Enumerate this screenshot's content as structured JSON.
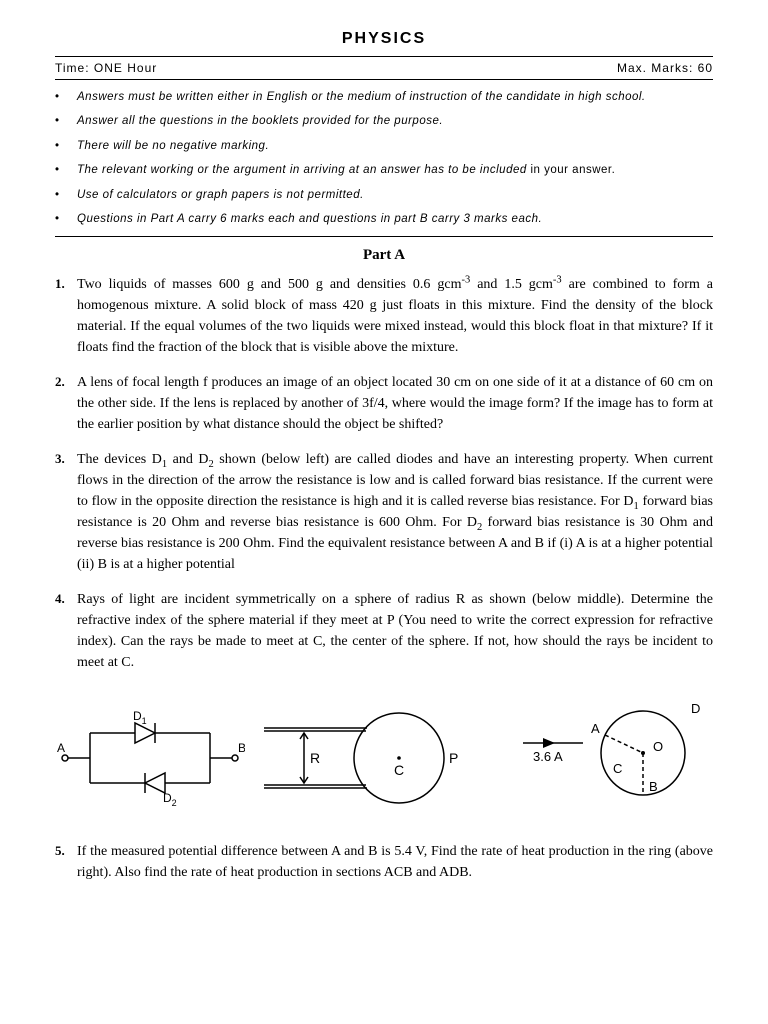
{
  "title": "PHYSICS",
  "meta": {
    "time": "Time: ONE Hour",
    "marks": "Max. Marks: 60"
  },
  "instructions": [
    "Answers must be written either in English or the medium of instruction of the candidate in high school.",
    "Answer all the questions in the booklets provided for the purpose.",
    "There will be no negative marking.",
    "",
    "Use of calculators or graph papers is not permitted.",
    "Questions in Part A carry 6 marks each and questions in part B carry 3 marks each."
  ],
  "instr4_italic": "The relevant working or the argument in arriving at an answer has to be included",
  "instr4_suffix": " in your answer.",
  "part_heading": "Part A",
  "questions": {
    "q1": {
      "num": "1.",
      "html": "Two liquids of masses 600 g and 500 g and densities 0.6 gcm<sup>-3</sup> and 1.5 gcm<sup>-3</sup>  are combined to form a homogenous mixture. A solid block of mass 420 g just floats in this mixture. Find the density of the block material. If the equal volumes of the two liquids were mixed instead, would this block float in that mixture? If it floats find the fraction of the block that is visible above the mixture."
    },
    "q2": {
      "num": "2.",
      "html": "A lens of focal length f produces an image of an object located 30 cm on one side of it at a distance of 60 cm on the other side. If the lens is replaced by another of 3f/4, where would the image form? If the image has to form at the earlier position by what distance should the object be shifted?"
    },
    "q3": {
      "num": "3.",
      "html": "The devices D<sub>1</sub> and D<sub>2</sub> shown (below left) are called diodes and have an interesting property. When current flows in the direction of the arrow the resistance is low and is called forward bias resistance. If the current were to flow in the opposite direction the resistance is high and it is called reverse bias resistance. For D<sub>1</sub> forward bias resistance is 20 Ohm and reverse bias resistance is 600 Ohm. For D<sub>2</sub> forward bias resistance is 30 Ohm and reverse bias resistance is 200 Ohm. Find the equivalent resistance between A and B if (i) A is at a higher potential (ii) B is at a higher potential"
    },
    "q4": {
      "num": "4.",
      "html": "Rays of light are incident symmetrically on a sphere of radius R as shown (below middle). Determine the refractive index of the sphere material if they meet at P (You need to write the correct expression for refractive index).  Can the rays be made to meet at C, the center of the sphere. If not, how should the rays be incident to meet at C."
    },
    "q5": {
      "num": "5.",
      "html": "If the measured potential difference between A and B is 5.4 V, Find the rate of heat production in the ring (above right). Also find the rate of heat production in sections ACB and ADB."
    }
  },
  "diagram_labels": {
    "d1_A": "A",
    "d1_B": "B",
    "d1_D1": "D",
    "d1_D1sub": "1",
    "d1_D2": "D",
    "d1_D2sub": "2",
    "d2_R": "R",
    "d2_C": "C",
    "d2_P": "P",
    "d3_I": "3.6 A",
    "d3_A": "A",
    "d3_B": "B",
    "d3_C": "C",
    "d3_D": "D",
    "d3_O": "O"
  }
}
